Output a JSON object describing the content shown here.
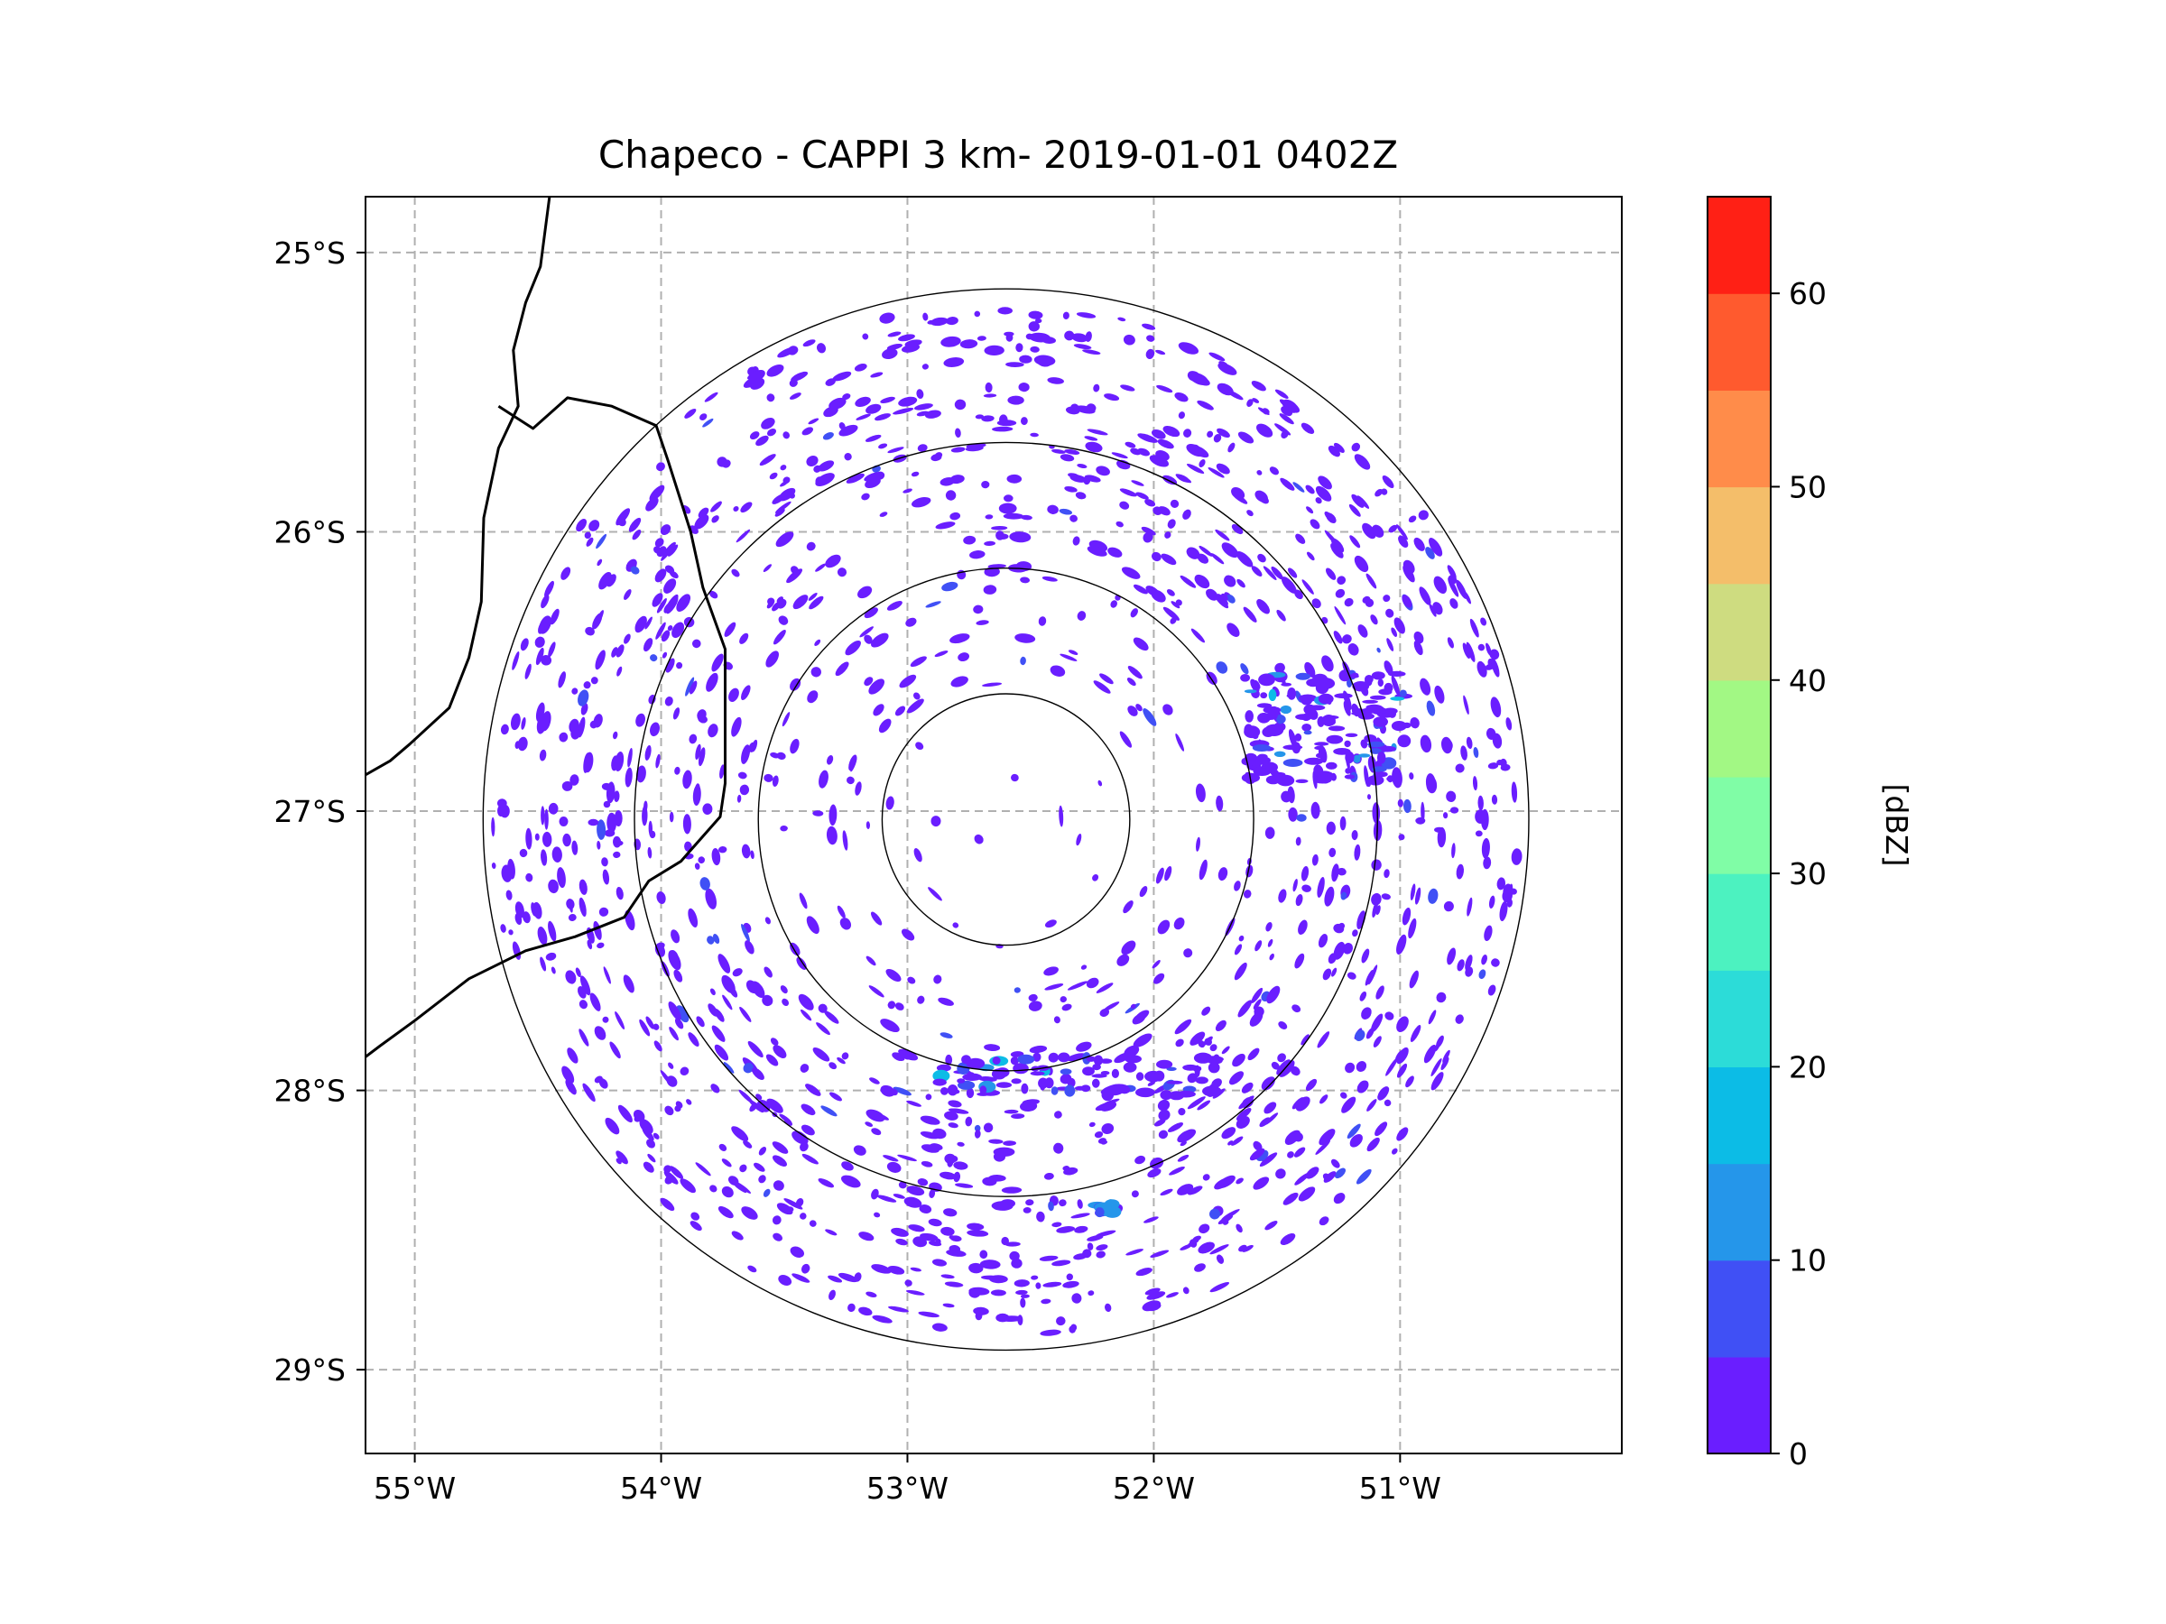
{
  "chart_data": {
    "type": "heatmap",
    "title": "Chapeco - CAPPI 3 km- 2019-01-01 0402Z",
    "radar_center": {
      "lon": -52.6,
      "lat": -27.03
    },
    "range_rings_deg": [
      0.45,
      0.9,
      1.35,
      1.9
    ],
    "xlim": [
      -55.2,
      -50.1
    ],
    "ylim": [
      -29.3,
      -24.8
    ],
    "x_ticks": [
      {
        "value": -55,
        "label": "55°W"
      },
      {
        "value": -54,
        "label": "54°W"
      },
      {
        "value": -53,
        "label": "53°W"
      },
      {
        "value": -52,
        "label": "52°W"
      },
      {
        "value": -51,
        "label": "51°W"
      }
    ],
    "y_ticks": [
      {
        "value": -25,
        "label": "25°S"
      },
      {
        "value": -26,
        "label": "26°S"
      },
      {
        "value": -27,
        "label": "27°S"
      },
      {
        "value": -28,
        "label": "28°S"
      },
      {
        "value": -29,
        "label": "29°S"
      }
    ],
    "gridlines": true,
    "colorbar": {
      "label": "[dBZ]",
      "min": 0,
      "max": 65,
      "levels": [
        {
          "from": 0,
          "to": 5,
          "color": "#6a1eff"
        },
        {
          "from": 5,
          "to": 10,
          "color": "#4050f5"
        },
        {
          "from": 10,
          "to": 15,
          "color": "#2596ea"
        },
        {
          "from": 15,
          "to": 20,
          "color": "#0cbce6"
        },
        {
          "from": 20,
          "to": 25,
          "color": "#2cdcd8"
        },
        {
          "from": 25,
          "to": 30,
          "color": "#4cf2c0"
        },
        {
          "from": 30,
          "to": 35,
          "color": "#80fda6"
        },
        {
          "from": 35,
          "to": 40,
          "color": "#a2f884"
        },
        {
          "from": 40,
          "to": 45,
          "color": "#cedc80"
        },
        {
          "from": 45,
          "to": 50,
          "color": "#f4be6a"
        },
        {
          "from": 50,
          "to": 55,
          "color": "#ff8c4a"
        },
        {
          "from": 55,
          "to": 60,
          "color": "#ff5a2e"
        },
        {
          "from": 60,
          "to": 65,
          "color": "#ff2015"
        }
      ],
      "ticks": [
        {
          "value": 0,
          "label": "0"
        },
        {
          "value": 10,
          "label": "10"
        },
        {
          "value": 20,
          "label": "20"
        },
        {
          "value": 30,
          "label": "30"
        },
        {
          "value": 40,
          "label": "40"
        },
        {
          "value": 50,
          "label": "50"
        },
        {
          "value": 60,
          "label": "60"
        }
      ]
    },
    "echo_regions": [
      {
        "name": "scattered clutter ring",
        "dbz": [
          0,
          5
        ],
        "r_deg": [
          0.45,
          1.85
        ],
        "density": "moderate"
      },
      {
        "name": "east cluster",
        "lon": -51.3,
        "lat": -26.7,
        "dbz": [
          0,
          15
        ]
      },
      {
        "name": "south arc",
        "lon": -52.3,
        "lat": -27.95,
        "dbz": [
          0,
          15
        ]
      },
      {
        "name": "southern speck",
        "lon": -52.2,
        "lat": -28.42,
        "dbz": [
          5,
          15
        ]
      }
    ],
    "borders": [
      {
        "name": "border-paraguay-argentina",
        "points": [
          [
            -54.45,
            -24.78
          ],
          [
            -54.49,
            -25.05
          ],
          [
            -54.55,
            -25.18
          ],
          [
            -54.6,
            -25.35
          ],
          [
            -54.58,
            -25.55
          ],
          [
            -54.66,
            -25.7
          ],
          [
            -54.72,
            -25.95
          ],
          [
            -54.73,
            -26.25
          ],
          [
            -54.78,
            -26.45
          ],
          [
            -54.86,
            -26.63
          ],
          [
            -55.02,
            -26.76
          ],
          [
            -55.1,
            -26.82
          ],
          [
            -55.2,
            -26.87
          ]
        ]
      },
      {
        "name": "border-argentina-brazil",
        "points": [
          [
            -54.66,
            -25.55
          ],
          [
            -54.52,
            -25.63
          ],
          [
            -54.38,
            -25.52
          ],
          [
            -54.2,
            -25.55
          ],
          [
            -54.02,
            -25.62
          ],
          [
            -53.97,
            -25.75
          ],
          [
            -53.88,
            -26.0
          ],
          [
            -53.83,
            -26.2
          ],
          [
            -53.74,
            -26.42
          ],
          [
            -53.74,
            -26.68
          ],
          [
            -53.74,
            -26.9
          ],
          [
            -53.76,
            -27.02
          ],
          [
            -53.92,
            -27.18
          ],
          [
            -54.05,
            -27.25
          ],
          [
            -54.15,
            -27.38
          ],
          [
            -54.35,
            -27.45
          ],
          [
            -54.55,
            -27.5
          ],
          [
            -54.78,
            -27.6
          ],
          [
            -55.0,
            -27.75
          ],
          [
            -55.14,
            -27.84
          ],
          [
            -55.2,
            -27.88
          ]
        ]
      }
    ]
  }
}
